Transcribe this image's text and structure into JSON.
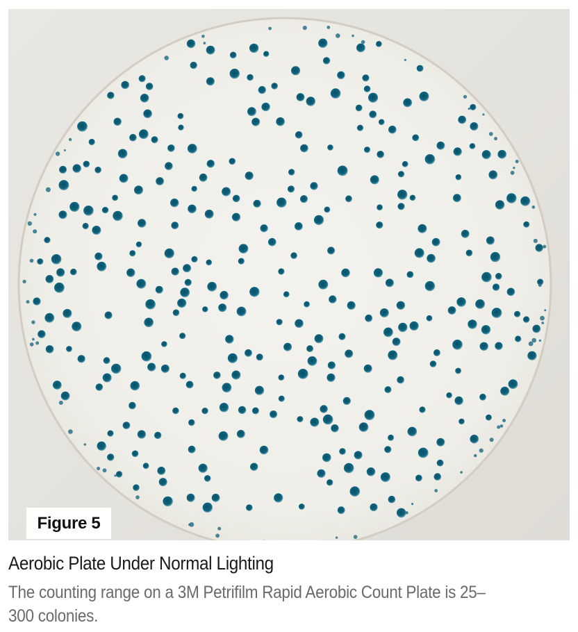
{
  "figure": {
    "label": "Figure 5",
    "title": "Aerobic Plate Under Normal Lighting",
    "description": "The counting range on a 3M Petrifilm Rapid Aerobic Count Plate is 25–300 colonies."
  },
  "photo": {
    "subject": "petri-plate",
    "colony_color": "#0f5f78",
    "background_color": "#e6e4de",
    "plate_color": "#f1f0eb"
  }
}
